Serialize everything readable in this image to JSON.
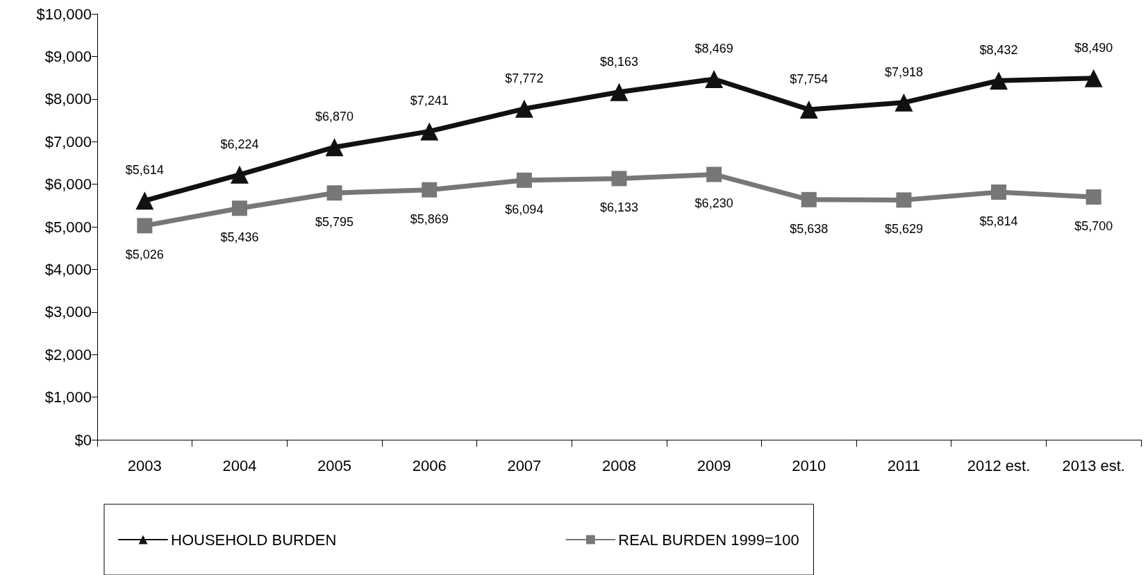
{
  "chart_data": {
    "type": "line",
    "categories": [
      "2003",
      "2004",
      "2005",
      "2006",
      "2007",
      "2008",
      "2009",
      "2010",
      "2011",
      "2012 est.",
      "2013 est."
    ],
    "series": [
      {
        "name": "HOUSEHOLD BURDEN",
        "color": "#111111",
        "marker": "triangle",
        "values": [
          5614,
          6224,
          6870,
          7241,
          7772,
          8163,
          8469,
          7754,
          7918,
          8432,
          8490
        ],
        "value_labels": [
          "$5,614",
          "$6,224",
          "$6,870",
          "$7,241",
          "$7,772",
          "$8,163",
          "$8,469",
          "$7,754",
          "$7,918",
          "$8,432",
          "$8,490"
        ]
      },
      {
        "name": "REAL BURDEN 1999=100",
        "color": "#777777",
        "marker": "square",
        "values": [
          5026,
          5436,
          5795,
          5869,
          6094,
          6133,
          6230,
          5638,
          5629,
          5814,
          5700
        ],
        "value_labels": [
          "$5,026",
          "$5,436",
          "$5,795",
          "$5,869",
          "$6,094",
          "$6,133",
          "$6,230",
          "$5,638",
          "$5,629",
          "$5,814",
          "$5,700"
        ]
      }
    ],
    "ylim": [
      0,
      10000
    ],
    "yticks": [
      {
        "value": 0,
        "label": "$0"
      },
      {
        "value": 1000,
        "label": "$1,000"
      },
      {
        "value": 2000,
        "label": "$2,000"
      },
      {
        "value": 3000,
        "label": "$3,000"
      },
      {
        "value": 4000,
        "label": "$4,000"
      },
      {
        "value": 5000,
        "label": "$5,000"
      },
      {
        "value": 6000,
        "label": "$6,000"
      },
      {
        "value": 7000,
        "label": "$7,000"
      },
      {
        "value": 8000,
        "label": "$8,000"
      },
      {
        "value": 9000,
        "label": "$9,000"
      },
      {
        "value": 10000,
        "label": "$10,000"
      }
    ],
    "grid": false,
    "legend": "bottom",
    "line_style": "solid"
  }
}
